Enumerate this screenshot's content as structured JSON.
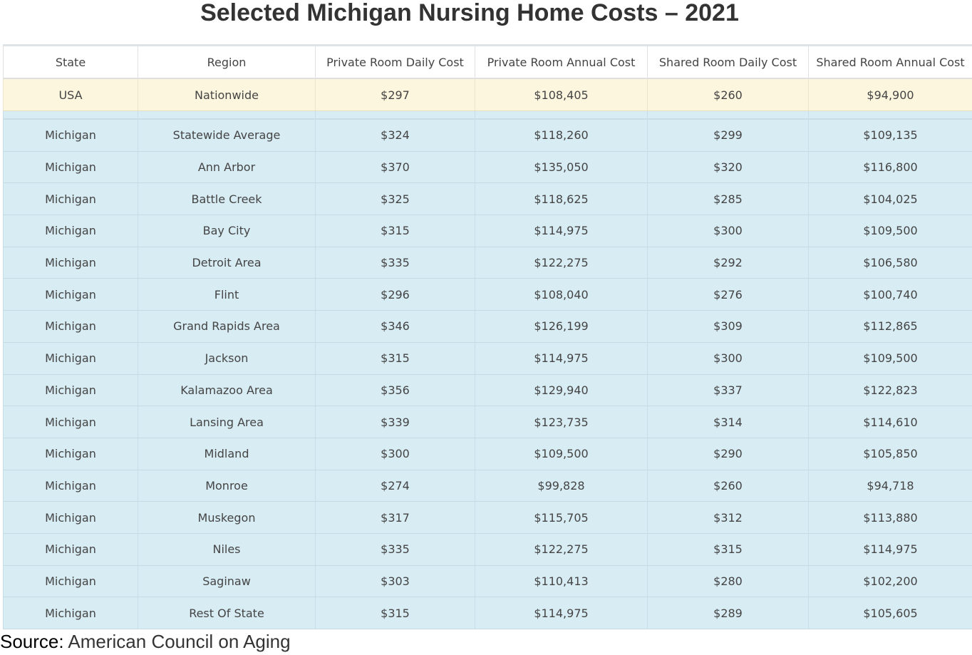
{
  "title": "Selected Michigan Nursing Home Costs – 2021",
  "table": {
    "headers": [
      "State",
      "Region",
      "Private Room Daily Cost",
      "Private Room Annual Cost",
      "Shared Room Daily Cost",
      "Shared Room Annual Cost"
    ],
    "nationwide": [
      "USA",
      "Nationwide",
      "$297",
      "$108,405",
      "$260",
      "$94,900"
    ],
    "rows": [
      [
        "Michigan",
        "Statewide Average",
        "$324",
        "$118,260",
        "$299",
        "$109,135"
      ],
      [
        "Michigan",
        "Ann Arbor",
        "$370",
        "$135,050",
        "$320",
        "$116,800"
      ],
      [
        "Michigan",
        "Battle Creek",
        "$325",
        "$118,625",
        "$285",
        "$104,025"
      ],
      [
        "Michigan",
        "Bay City",
        "$315",
        "$114,975",
        "$300",
        "$109,500"
      ],
      [
        "Michigan",
        "Detroit Area",
        "$335",
        "$122,275",
        "$292",
        "$106,580"
      ],
      [
        "Michigan",
        "Flint",
        "$296",
        "$108,040",
        "$276",
        "$100,740"
      ],
      [
        "Michigan",
        "Grand Rapids Area",
        "$346",
        "$126,199",
        "$309",
        "$112,865"
      ],
      [
        "Michigan",
        "Jackson",
        "$315",
        "$114,975",
        "$300",
        "$109,500"
      ],
      [
        "Michigan",
        "Kalamazoo Area",
        "$356",
        "$129,940",
        "$337",
        "$122,823"
      ],
      [
        "Michigan",
        "Lansing Area",
        "$339",
        "$123,735",
        "$314",
        "$114,610"
      ],
      [
        "Michigan",
        "Midland",
        "$300",
        "$109,500",
        "$290",
        "$105,850"
      ],
      [
        "Michigan",
        "Monroe",
        "$274",
        "$99,828",
        "$260",
        "$94,718"
      ],
      [
        "Michigan",
        "Muskegon",
        "$317",
        "$115,705",
        "$312",
        "$113,880"
      ],
      [
        "Michigan",
        "Niles",
        "$335",
        "$122,275",
        "$315",
        "$114,975"
      ],
      [
        "Michigan",
        "Saginaw",
        "$303",
        "$110,413",
        "$280",
        "$102,200"
      ],
      [
        "Michigan",
        "Rest Of State",
        "$315",
        "$114,975",
        "$289",
        "$105,605"
      ]
    ]
  },
  "source": {
    "label": "Source:",
    "value": "American Council on Aging"
  },
  "colors": {
    "nationwide_row": "#fdf6df",
    "state_rows": "#d8ecf4",
    "title_text": "#333333"
  }
}
